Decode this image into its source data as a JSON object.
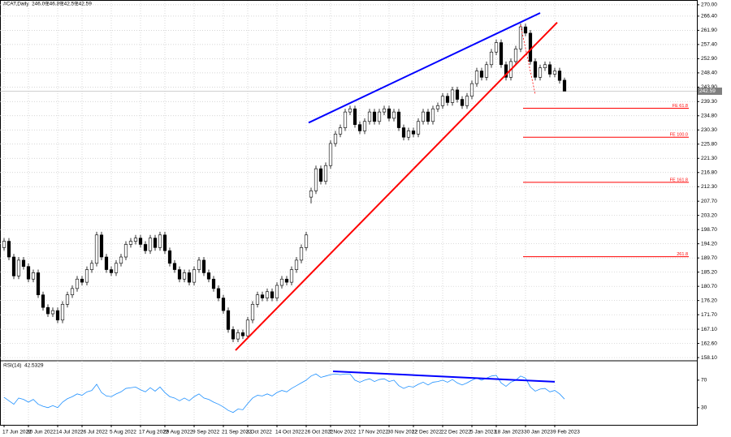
{
  "chart_data": {
    "type": "candlestick",
    "title": "#CAT,Daily",
    "categories": [
      "17 Jun 2022",
      null,
      null,
      null,
      null,
      "30 Jun 2022",
      null,
      null,
      null,
      null,
      null,
      "14 Jul 2022",
      null,
      null,
      null,
      null,
      "26 Jul 2022",
      null,
      null,
      null,
      null,
      null,
      "5 Aug 2022",
      null,
      null,
      null,
      null,
      null,
      "17 Aug 2022",
      null,
      null,
      null,
      null,
      "29 Aug 2022",
      null,
      null,
      null,
      null,
      null,
      "9 Sep 2022",
      null,
      null,
      null,
      null,
      null,
      "21 Sep 2022",
      null,
      null,
      null,
      null,
      "3 Oct 2022",
      null,
      null,
      null,
      null,
      null,
      "14 Oct 2022",
      null,
      null,
      null,
      null,
      null,
      "26 Oct 2022",
      null,
      null,
      null,
      null,
      "7 Nov 2022",
      null,
      null,
      null,
      null,
      null,
      "17 Nov 2022",
      null,
      null,
      null,
      null,
      null,
      "30 Nov 2022",
      null,
      null,
      null,
      null,
      "12 Dec 2022",
      null,
      null,
      null,
      null,
      null,
      "22 Dec 2022",
      null,
      null,
      null,
      null,
      null,
      "5 Jan 2023",
      null,
      null,
      null,
      null,
      "18 Jan 2023",
      null,
      null,
      null,
      null,
      null,
      "30 Jan 2023",
      null,
      null,
      null,
      null,
      null,
      "9 Feb 2023",
      null,
      null
    ],
    "open": [
      193,
      195,
      190,
      184,
      189,
      187,
      183,
      185,
      178,
      174,
      172,
      173,
      170,
      175,
      178,
      180,
      183,
      182,
      186,
      188,
      197,
      190,
      186,
      185,
      188,
      190,
      194,
      195,
      196,
      194,
      192,
      196,
      193,
      197,
      192,
      188,
      186,
      183,
      185,
      182,
      186,
      189,
      185,
      183,
      180,
      177,
      173,
      167,
      164,
      166,
      165,
      170,
      175,
      178,
      177,
      179,
      177,
      181,
      183,
      182,
      186,
      189,
      193,
      209,
      211,
      218,
      214,
      219,
      226,
      229,
      231,
      236,
      237,
      232,
      230,
      233,
      236,
      233,
      236,
      237,
      234,
      236,
      231,
      228,
      230,
      229,
      233,
      236,
      233,
      237,
      238,
      241,
      239,
      243,
      240,
      238,
      241,
      245,
      249,
      247,
      251,
      255,
      258,
      251,
      247,
      252,
      256,
      263,
      261,
      252,
      247,
      250,
      251,
      248,
      249,
      246.09
    ],
    "high": [
      196,
      196,
      191,
      190,
      190,
      188,
      186,
      186,
      179,
      175,
      174,
      174,
      176,
      179,
      181,
      184,
      184,
      187,
      189,
      198,
      198,
      191,
      187,
      189,
      191,
      195,
      196,
      197,
      197,
      195,
      197,
      197,
      198,
      198,
      193,
      189,
      187,
      186,
      186,
      187,
      190,
      190,
      186,
      184,
      181,
      178,
      174,
      168,
      167,
      167,
      171,
      176,
      179,
      179,
      180,
      180,
      182,
      184,
      184,
      187,
      190,
      194,
      198,
      212,
      219,
      219,
      220,
      227,
      230,
      232,
      237,
      238,
      238,
      233,
      234,
      237,
      237,
      237,
      238,
      238,
      237,
      237,
      232,
      231,
      231,
      234,
      237,
      237,
      238,
      239,
      242,
      242,
      244,
      244,
      241,
      242,
      246,
      250,
      250,
      252,
      256,
      259,
      259,
      252,
      253,
      257,
      264,
      264,
      262,
      253,
      251,
      252,
      252,
      250,
      250,
      246.89
    ],
    "low": [
      192,
      189,
      183,
      183,
      186,
      182,
      182,
      177,
      173,
      171,
      171,
      169,
      169,
      174,
      177,
      179,
      181,
      181,
      185,
      187,
      189,
      185,
      184,
      184,
      187,
      189,
      193,
      194,
      193,
      191,
      191,
      192,
      192,
      191,
      187,
      185,
      182,
      182,
      181,
      181,
      185,
      184,
      182,
      179,
      176,
      172,
      166,
      163,
      163,
      164,
      164,
      169,
      174,
      176,
      176,
      176,
      176,
      180,
      181,
      181,
      185,
      188,
      192,
      207,
      210,
      213,
      213,
      218,
      225,
      228,
      230,
      235,
      231,
      229,
      229,
      232,
      232,
      232,
      235,
      233,
      233,
      230,
      227,
      227,
      228,
      228,
      232,
      232,
      232,
      236,
      237,
      238,
      238,
      239,
      237,
      237,
      240,
      244,
      246,
      246,
      250,
      254,
      250,
      246,
      246,
      251,
      255,
      260,
      251,
      246,
      246,
      249,
      247,
      247,
      245,
      242.59
    ],
    "close": [
      195,
      190,
      184,
      189,
      187,
      183,
      185,
      178,
      174,
      172,
      173,
      170,
      175,
      178,
      180,
      183,
      182,
      186,
      188,
      197,
      190,
      186,
      185,
      188,
      190,
      194,
      195,
      196,
      194,
      192,
      196,
      193,
      197,
      192,
      188,
      186,
      183,
      185,
      182,
      186,
      189,
      185,
      183,
      180,
      177,
      173,
      167,
      164,
      166,
      165,
      170,
      175,
      178,
      177,
      179,
      177,
      181,
      183,
      182,
      186,
      189,
      193,
      197,
      211,
      218,
      214,
      219,
      226,
      229,
      231,
      236,
      237,
      232,
      230,
      233,
      236,
      233,
      236,
      237,
      234,
      236,
      231,
      228,
      230,
      229,
      233,
      236,
      233,
      237,
      238,
      241,
      239,
      243,
      240,
      238,
      241,
      245,
      249,
      247,
      251,
      255,
      258,
      251,
      247,
      252,
      256,
      263,
      261,
      252,
      247,
      250,
      251,
      248,
      249,
      246,
      242.59
    ],
    "up_color": "#ffffff",
    "down_color": "#000000",
    "ylim": [
      157.6,
      271.0
    ],
    "yticks": [
      {
        "value": 270,
        "label": "270.00"
      },
      {
        "value": 266.4,
        "label": "266.40"
      },
      {
        "value": 261.9,
        "label": "261.90"
      },
      {
        "value": 257.4,
        "label": "257.40"
      },
      {
        "value": 252.9,
        "label": "252.90"
      },
      {
        "value": 248.4,
        "label": "248.40"
      },
      {
        "value": 243.9,
        "label": "243.90"
      },
      {
        "value": 239.3,
        "label": "239.30"
      },
      {
        "value": 234.8,
        "label": "234.80"
      },
      {
        "value": 230.3,
        "label": "230.30"
      },
      {
        "value": 225.8,
        "label": "225.80"
      },
      {
        "value": 221.3,
        "label": "221.30"
      },
      {
        "value": 216.8,
        "label": "216.80"
      },
      {
        "value": 212.3,
        "label": "212.30"
      },
      {
        "value": 207.7,
        "label": "207.70"
      },
      {
        "value": 203.2,
        "label": "203.20"
      },
      {
        "value": 198.7,
        "label": "198.70"
      },
      {
        "value": 194.2,
        "label": "194.20"
      },
      {
        "value": 189.7,
        "label": "189.70"
      },
      {
        "value": 185.2,
        "label": "185.20"
      },
      {
        "value": 180.7,
        "label": "180.70"
      },
      {
        "value": 176.2,
        "label": "176.20"
      },
      {
        "value": 171.7,
        "label": "171.70"
      },
      {
        "value": 167.1,
        "label": "167.10"
      },
      {
        "value": 162.6,
        "label": "162.60"
      },
      {
        "value": 158.1,
        "label": "158.10"
      }
    ],
    "grid": true,
    "trendlines": [
      {
        "color": "#0000ff",
        "x": [
          62.5,
          110
        ],
        "y": [
          232.6,
          267.4
        ]
      },
      {
        "color": "#ff0000",
        "x": [
          47.5,
          113.5
        ],
        "y": [
          160.4,
          264.4
        ]
      },
      {
        "color": "#ff0000",
        "dash": true,
        "x": [
          106,
          109
        ],
        "y": [
          263.5,
          241.6
        ]
      }
    ],
    "levels": [
      {
        "label": "FE 61.8",
        "value": 237.2
      },
      {
        "label": "FE 100.0",
        "value": 228.0
      },
      {
        "label": "FE 161.8",
        "value": 213.7
      },
      {
        "label": "261.8",
        "value": 190.1
      }
    ],
    "level_color": "#ff0000",
    "indicator": {
      "type": "line",
      "title": "RSI(14)",
      "color": "#1e90ff",
      "values": [
        45,
        40,
        35,
        44,
        42,
        38,
        42,
        35,
        32,
        30,
        33,
        30,
        38,
        43,
        46,
        50,
        48,
        53,
        55,
        64,
        52,
        47,
        46,
        50,
        53,
        58,
        59,
        60,
        56,
        53,
        59,
        54,
        60,
        52,
        46,
        44,
        40,
        44,
        40,
        46,
        50,
        44,
        42,
        38,
        35,
        31,
        26,
        23,
        28,
        27,
        36,
        44,
        48,
        47,
        50,
        47,
        52,
        55,
        53,
        58,
        62,
        66,
        70,
        76,
        79,
        74,
        76,
        78,
        79,
        78,
        79,
        79,
        70,
        67,
        70,
        72,
        68,
        71,
        72,
        68,
        70,
        62,
        58,
        61,
        60,
        64,
        67,
        63,
        67,
        68,
        70,
        67,
        71,
        66,
        63,
        66,
        70,
        73,
        70,
        73,
        76,
        77,
        66,
        61,
        67,
        70,
        76,
        73,
        60,
        54,
        57,
        58,
        53,
        55,
        50,
        42.5329
      ],
      "ylim": [
        5,
        97
      ],
      "yticks": [
        70,
        30
      ],
      "trendline": {
        "color": "#0000ff",
        "x": [
          67.5,
          113
        ],
        "y": [
          82.9,
          67.6
        ]
      }
    }
  }
}
